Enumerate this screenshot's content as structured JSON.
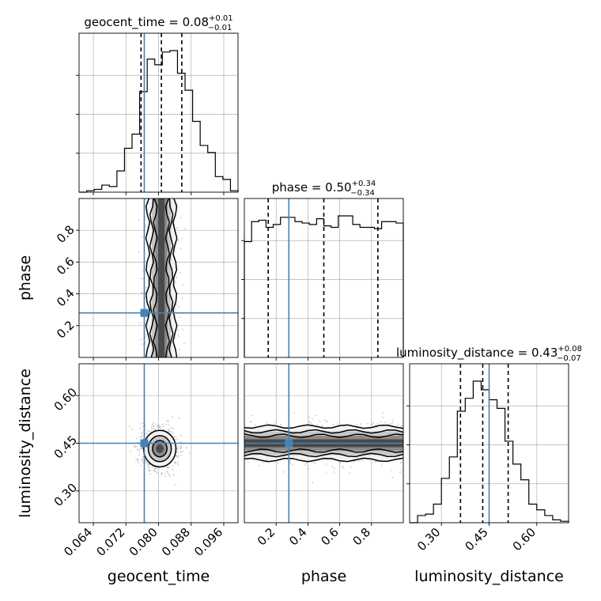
{
  "figure": {
    "type": "corner-plot",
    "truth_color": "#4682b4",
    "hist_color": "#000000"
  },
  "chart_data": {
    "type": "corner",
    "parameters": [
      {
        "key": "geocent_time",
        "label": "geocent_time",
        "title_main": "geocent_time = 0.08",
        "title_plus": "+0.01",
        "title_minus": "−0.01",
        "range": [
          0.0605,
          0.0995
        ],
        "ticks": [
          0.064,
          0.072,
          0.08,
          0.088,
          0.096
        ],
        "tick_labels": [
          "0.064",
          "0.072",
          "0.080",
          "0.088",
          "0.096"
        ],
        "truth": 0.0765,
        "quantiles": [
          0.0757,
          0.0807,
          0.0857
        ],
        "hist_bins": [
          0.0605,
          0.0995
        ],
        "hist_counts": [
          0.0,
          0.01,
          0.02,
          0.05,
          0.04,
          0.15,
          0.31,
          0.41,
          0.71,
          0.94,
          0.9,
          0.99,
          1.0,
          0.84,
          0.72,
          0.5,
          0.33,
          0.28,
          0.11,
          0.09,
          0.01
        ]
      },
      {
        "key": "phase",
        "label": "phase",
        "title_main": "phase = 0.50",
        "title_plus": "+0.34",
        "title_minus": "−0.34",
        "range": [
          0.0,
          1.0
        ],
        "ticks": [
          0.2,
          0.4,
          0.6,
          0.8
        ],
        "tick_labels": [
          "0.2",
          "0.4",
          "0.6",
          "0.8"
        ],
        "truth": 0.28,
        "quantiles": [
          0.15,
          0.5,
          0.84
        ],
        "hist_bins": [
          0.0,
          1.0
        ],
        "hist_counts": [
          0.81,
          0.95,
          0.96,
          0.91,
          0.93,
          0.98,
          0.98,
          0.95,
          0.94,
          0.93,
          0.97,
          0.92,
          0.91,
          0.99,
          0.99,
          0.93,
          0.91,
          0.91,
          0.9,
          0.95,
          0.95,
          0.94
        ]
      },
      {
        "key": "luminosity_distance",
        "label": "luminosity_distance",
        "title_main": "luminosity_distance = 0.43",
        "title_plus": "+0.08",
        "title_minus": "−0.07",
        "range": [
          0.2,
          0.7
        ],
        "ticks": [
          0.3,
          0.45,
          0.6
        ],
        "tick_labels": [
          "0.30",
          "0.45",
          "0.60"
        ],
        "truth": 0.45,
        "quantiles": [
          0.36,
          0.43,
          0.51
        ],
        "hist_bins": [
          0.2,
          0.7
        ],
        "hist_counts": [
          0.0,
          0.05,
          0.06,
          0.13,
          0.31,
          0.46,
          0.78,
          0.87,
          0.99,
          0.93,
          0.86,
          0.8,
          0.57,
          0.41,
          0.3,
          0.13,
          0.09,
          0.05,
          0.02,
          0.01
        ]
      }
    ],
    "pair_modes": [
      {
        "x": "geocent_time",
        "y": "phase",
        "kind": "column",
        "center": [
          0.0807,
          0.5
        ],
        "width": [
          0.0035,
          0.35
        ]
      },
      {
        "x": "geocent_time",
        "y": "luminosity_distance",
        "kind": "blob",
        "center": [
          0.0803,
          0.433
        ],
        "width": [
          0.0038,
          0.055
        ]
      },
      {
        "x": "phase",
        "y": "luminosity_distance",
        "kind": "band",
        "center": [
          0.5,
          0.45
        ],
        "width": [
          0.35,
          0.055
        ]
      }
    ],
    "grid": true
  }
}
